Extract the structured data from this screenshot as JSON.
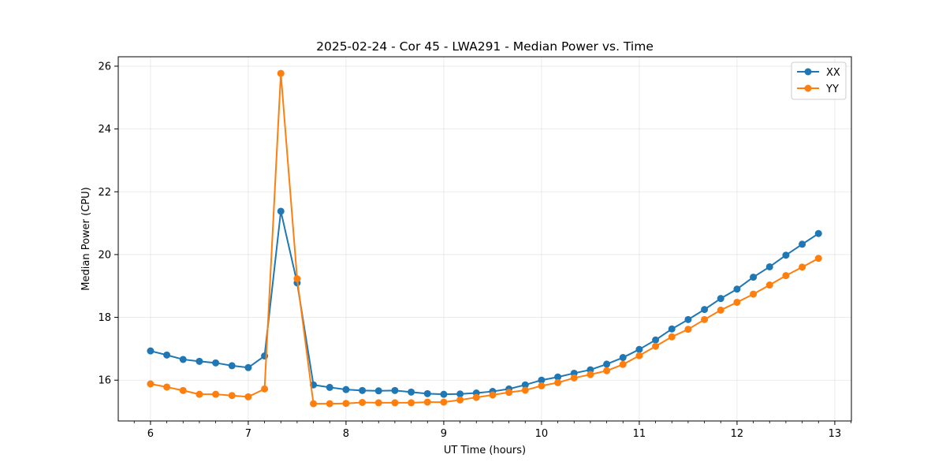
{
  "chart_data": {
    "type": "line",
    "title": "2025-02-24 - Cor 45 - LWA291 - Median Power vs. Time",
    "xlabel": "UT Time (hours)",
    "ylabel": "Median Power (CPU)",
    "xlim": [
      5.67,
      13.17
    ],
    "ylim": [
      14.7,
      26.3
    ],
    "xticks": [
      6,
      7,
      8,
      9,
      10,
      11,
      12,
      13
    ],
    "yticks": [
      16,
      18,
      20,
      22,
      24,
      26
    ],
    "grid": true,
    "legend_position": "top-right",
    "x": [
      6.0,
      6.1667,
      6.3333,
      6.5,
      6.6667,
      6.8333,
      7.0,
      7.1667,
      7.3333,
      7.5,
      7.6667,
      7.8333,
      8.0,
      8.1667,
      8.3333,
      8.5,
      8.6667,
      8.8333,
      9.0,
      9.1667,
      9.3333,
      9.5,
      9.6667,
      9.8333,
      10.0,
      10.1667,
      10.3333,
      10.5,
      10.6667,
      10.8333,
      11.0,
      11.1667,
      11.3333,
      11.5,
      11.6667,
      11.8333,
      12.0,
      12.1667,
      12.3333,
      12.5,
      12.6667,
      12.8333
    ],
    "series": [
      {
        "name": "XX",
        "color": "#1f77b4",
        "values": [
          16.93,
          16.8,
          16.66,
          16.6,
          16.55,
          16.46,
          16.4,
          16.77,
          21.38,
          19.1,
          15.85,
          15.77,
          15.7,
          15.67,
          15.66,
          15.67,
          15.62,
          15.57,
          15.55,
          15.56,
          15.59,
          15.64,
          15.72,
          15.85,
          16.0,
          16.1,
          16.22,
          16.33,
          16.51,
          16.72,
          16.98,
          17.28,
          17.63,
          17.93,
          18.25,
          18.6,
          18.9,
          19.28,
          19.61,
          19.98,
          20.33,
          20.67
        ],
        "marker": "circle"
      },
      {
        "name": "YY",
        "color": "#ff7f0e",
        "values": [
          15.88,
          15.78,
          15.67,
          15.55,
          15.55,
          15.51,
          15.47,
          15.72,
          25.77,
          19.23,
          15.25,
          15.25,
          15.26,
          15.29,
          15.28,
          15.28,
          15.28,
          15.3,
          15.3,
          15.37,
          15.45,
          15.53,
          15.61,
          15.68,
          15.82,
          15.92,
          16.07,
          16.18,
          16.3,
          16.5,
          16.78,
          17.08,
          17.38,
          17.62,
          17.93,
          18.23,
          18.48,
          18.74,
          19.03,
          19.33,
          19.6,
          19.88
        ],
        "marker": "circle"
      }
    ]
  }
}
